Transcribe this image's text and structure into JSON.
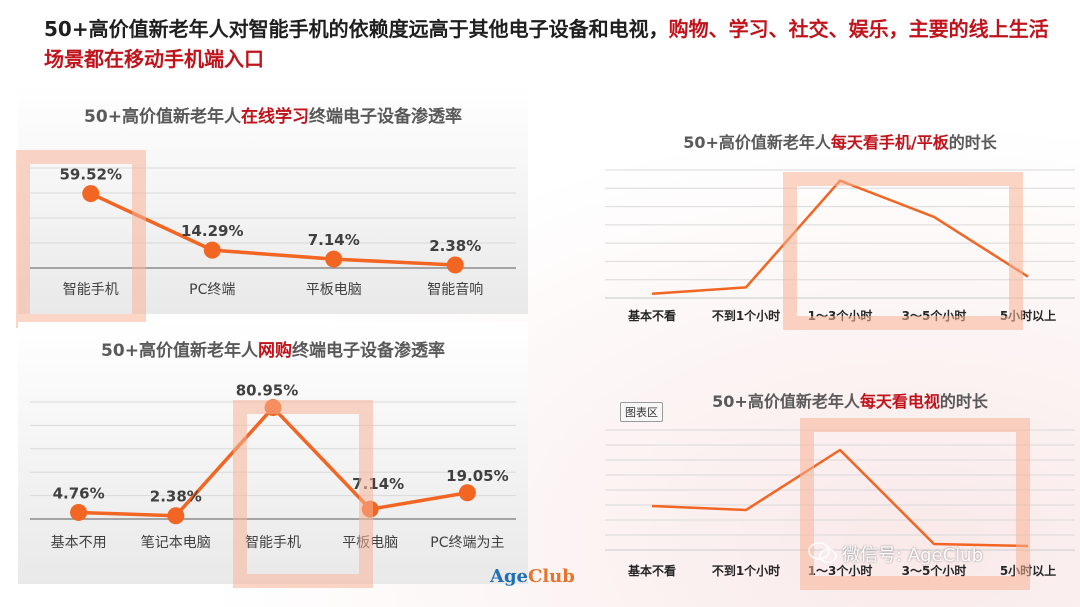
{
  "headline": {
    "part1": "50+高价值新老年人对智能手机的依赖度远高于其他电子设备和电视，",
    "part2": "购物、学习、社交、娱乐，主要的线上生活场景都在移动手机端入口"
  },
  "chart_data": [
    {
      "type": "line",
      "title_pre": "50+高价值新老年人",
      "title_hl": "在线学习",
      "title_post": "终端电子设备渗透率",
      "categories": [
        "智能手机",
        "PC终端",
        "平板电脑",
        "智能音响"
      ],
      "values": [
        59.52,
        14.29,
        7.14,
        2.38
      ],
      "data_labels": [
        "59.52%",
        "14.29%",
        "7.14%",
        "2.38%"
      ],
      "ylim": [
        0,
        80
      ],
      "color": "#f26522",
      "grid": true
    },
    {
      "type": "line",
      "title_pre": "50+高价值新老年人",
      "title_hl": "网购",
      "title_post": "终端电子设备渗透率",
      "categories": [
        "基本不用",
        "笔记本电脑",
        "智能手机",
        "平板电脑",
        "PC终端为主"
      ],
      "values": [
        4.76,
        2.38,
        80.95,
        7.14,
        19.05
      ],
      "data_labels": [
        "4.76%",
        "2.38%",
        "80.95%",
        "7.14%",
        "19.05%"
      ],
      "ylim": [
        0,
        85
      ],
      "color": "#f26522",
      "grid": true
    },
    {
      "type": "line",
      "title_pre": "50+高价值新老年人",
      "title_hl": "每天看手机/平板",
      "title_post": "的时长",
      "categories": [
        "基本不看",
        "不到1个小时",
        "1～3个小时",
        "3～5个小时",
        "5小时以上"
      ],
      "values": [
        2,
        5,
        55,
        38,
        10
      ],
      "ylim": [
        0,
        60
      ],
      "color": "#f26522",
      "grid": true
    },
    {
      "type": "line",
      "title_pre": "50+高价值新老年人",
      "title_hl": "每天看电视",
      "title_post": "的时长",
      "categories": [
        "基本不看",
        "不到1个小时",
        "1～3个小时",
        "3～5个小时",
        "5小时以上"
      ],
      "values": [
        22,
        20,
        50,
        3,
        2
      ],
      "ylim": [
        0,
        60
      ],
      "color": "#f26522",
      "grid": true
    }
  ],
  "chart_area_tag": "图表区",
  "logo": {
    "part1": "Age",
    "part2": "Club"
  },
  "watermark": "微信号: AgeClub",
  "colors": {
    "accent": "#f26522",
    "highlight_red": "#c0131b",
    "box": "#f8b296"
  }
}
